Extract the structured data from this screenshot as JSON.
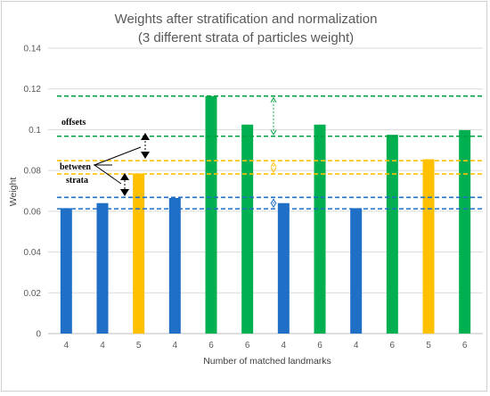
{
  "chart_data": {
    "type": "bar",
    "title_line1": "Weights after stratification and normalization",
    "title_line2": "(3 different strata of particles weight)",
    "xlabel": "Number of matched landmarks",
    "ylabel": "Weight",
    "ylim": [
      0,
      0.14
    ],
    "yticks": [
      0,
      0.02,
      0.04,
      0.06,
      0.08,
      0.1,
      0.12,
      0.14
    ],
    "ytick_labels": [
      "0",
      "0.02",
      "0.04",
      "0.06",
      "0.08",
      "0.1",
      "0.12",
      "0.14"
    ],
    "grid": true,
    "categories": [
      "4",
      "4",
      "5",
      "4",
      "6",
      "6",
      "4",
      "6",
      "4",
      "6",
      "5",
      "6"
    ],
    "values": [
      0.0615,
      0.064,
      0.0785,
      0.0665,
      0.1165,
      0.1025,
      0.064,
      0.1025,
      0.0615,
      0.0975,
      0.0855,
      0.0998
    ],
    "colors": {
      "4": "#1f6fc6",
      "5": "#ffc000",
      "6": "#00b050"
    },
    "strata_lines": [
      {
        "stratum": "6",
        "levels": [
          0.1165,
          0.0968
        ],
        "color": "#00a040"
      },
      {
        "stratum": "5",
        "levels": [
          0.0848,
          0.0783
        ],
        "color": "#ffc000"
      },
      {
        "stratum": "4",
        "levels": [
          0.0668,
          0.0612
        ],
        "color": "#1f6fc6"
      }
    ],
    "annotation": {
      "line1": "offsets",
      "line2": "between",
      "line3": "strata"
    }
  }
}
